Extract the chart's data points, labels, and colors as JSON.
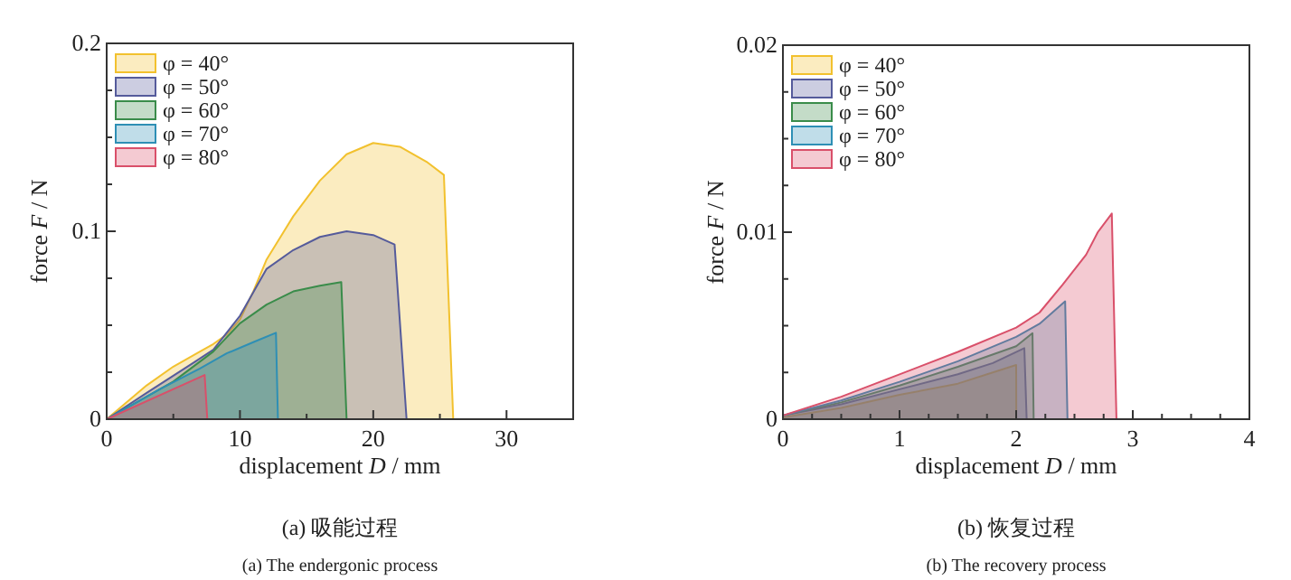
{
  "chart_data": [
    {
      "type": "area",
      "title": "(a) 吸能过程",
      "subtitle": "(a) The endergonic process",
      "xlabel": "displacement *D* / mm",
      "ylabel": "force *F* / N",
      "xlim": [
        0,
        35
      ],
      "ylim": [
        0,
        0.2
      ],
      "xticks": [
        0,
        {
          "value": 5,
          "label": null
        },
        10,
        {
          "value": 15,
          "label": null
        },
        20,
        {
          "value": 25,
          "label": null
        },
        30,
        {
          "value": 35,
          "label": null
        }
      ],
      "yticks": [
        0,
        {
          "value": 0.025,
          "label": null
        },
        {
          "value": 0.05,
          "label": null
        },
        {
          "value": 0.075,
          "label": null
        },
        0.1,
        {
          "value": 0.125,
          "label": null
        },
        {
          "value": 0.15,
          "label": null
        },
        {
          "value": 0.175,
          "label": null
        },
        0.2
      ],
      "legend": "top left",
      "grid": false,
      "series": [
        {
          "name": "φ = 40°",
          "color": "#f2c12e",
          "x": [
            0,
            1,
            3,
            5,
            7,
            8,
            9,
            10,
            11,
            12,
            14,
            16,
            18,
            20,
            22,
            24,
            25.3,
            26
          ],
          "values": [
            0,
            0.006,
            0.018,
            0.028,
            0.036,
            0.04,
            0.045,
            0.053,
            0.068,
            0.085,
            0.108,
            0.127,
            0.141,
            0.147,
            0.145,
            0.137,
            0.13,
            0
          ]
        },
        {
          "name": "φ = 50°",
          "color": "#555b9b",
          "x": [
            0,
            3,
            6.5,
            8,
            10,
            12,
            14,
            16,
            18,
            20,
            21.6,
            22.5
          ],
          "values": [
            0,
            0.014,
            0.03,
            0.037,
            0.055,
            0.08,
            0.09,
            0.097,
            0.1,
            0.098,
            0.093,
            0
          ]
        },
        {
          "name": "φ = 60°",
          "color": "#3a8c4a",
          "x": [
            0,
            5,
            8,
            10,
            12,
            14,
            16,
            17.6,
            18
          ],
          "values": [
            0,
            0.02,
            0.036,
            0.051,
            0.061,
            0.068,
            0.071,
            0.073,
            0
          ]
        },
        {
          "name": "φ = 70°",
          "color": "#2e8fb5",
          "x": [
            0,
            4,
            7,
            9,
            11,
            12.7,
            12.85
          ],
          "values": [
            0,
            0.016,
            0.027,
            0.035,
            0.041,
            0.046,
            0
          ]
        },
        {
          "name": "φ = 80°",
          "color": "#d9506a",
          "x": [
            0,
            7.35,
            7.55
          ],
          "values": [
            0,
            0.0235,
            0
          ]
        }
      ]
    },
    {
      "type": "area",
      "title": "(b) 恢复过程",
      "subtitle": "(b) The recovery process",
      "xlabel": "displacement *D* / mm",
      "ylabel": "force *F* / N",
      "xlim": [
        0,
        4
      ],
      "ylim": [
        0,
        0.02
      ],
      "xticks": [
        0,
        {
          "value": 0.25,
          "label": null
        },
        {
          "value": 0.5,
          "label": null
        },
        {
          "value": 0.75,
          "label": null
        },
        1,
        {
          "value": 1.25,
          "label": null
        },
        {
          "value": 1.5,
          "label": null
        },
        {
          "value": 1.75,
          "label": null
        },
        2,
        {
          "value": 2.25,
          "label": null
        },
        {
          "value": 2.5,
          "label": null
        },
        {
          "value": 2.75,
          "label": null
        },
        3,
        {
          "value": 3.25,
          "label": null
        },
        {
          "value": 3.5,
          "label": null
        },
        {
          "value": 3.75,
          "label": null
        },
        4
      ],
      "yticks": [
        0,
        {
          "value": 0.0025,
          "label": null
        },
        {
          "value": 0.005,
          "label": null
        },
        {
          "value": 0.0075,
          "label": null
        },
        0.01,
        {
          "value": 0.0125,
          "label": null
        },
        {
          "value": 0.015,
          "label": null
        },
        {
          "value": 0.0175,
          "label": null
        },
        0.02
      ],
      "legend": "top left",
      "grid": false,
      "series": [
        {
          "name": "φ = 40°",
          "color": "#f2c12e",
          "x": [
            0,
            0.5,
            1,
            1.5,
            1.8,
            2,
            2.001
          ],
          "values": [
            0.0001,
            0.0006,
            0.0013,
            0.0019,
            0.0025,
            0.0029,
            0
          ]
        },
        {
          "name": "φ = 50°",
          "color": "#555b9b",
          "x": [
            0,
            0.5,
            1,
            1.5,
            1.8,
            2.07,
            2.09
          ],
          "values": [
            0.0002,
            0.0008,
            0.0016,
            0.0024,
            0.003,
            0.0038,
            0
          ]
        },
        {
          "name": "φ = 60°",
          "color": "#3a8c4a",
          "x": [
            0,
            0.5,
            1,
            1.5,
            2,
            2.14,
            2.15
          ],
          "values": [
            0.0002,
            0.0009,
            0.0018,
            0.0028,
            0.0039,
            0.0046,
            0
          ]
        },
        {
          "name": "φ = 70°",
          "color": "#2e8fb5",
          "x": [
            0,
            0.5,
            1,
            1.5,
            2,
            2.2,
            2.42,
            2.44
          ],
          "values": [
            0.0002,
            0.001,
            0.002,
            0.0031,
            0.0044,
            0.0051,
            0.0063,
            0
          ]
        },
        {
          "name": "φ = 80°",
          "color": "#d9506a",
          "x": [
            0,
            0.5,
            1,
            1.5,
            2,
            2.2,
            2.4,
            2.6,
            2.7,
            2.82,
            2.86
          ],
          "values": [
            0.0002,
            0.0012,
            0.0024,
            0.0036,
            0.0049,
            0.0057,
            0.0072,
            0.0088,
            0.01,
            0.011,
            0
          ]
        }
      ]
    }
  ]
}
